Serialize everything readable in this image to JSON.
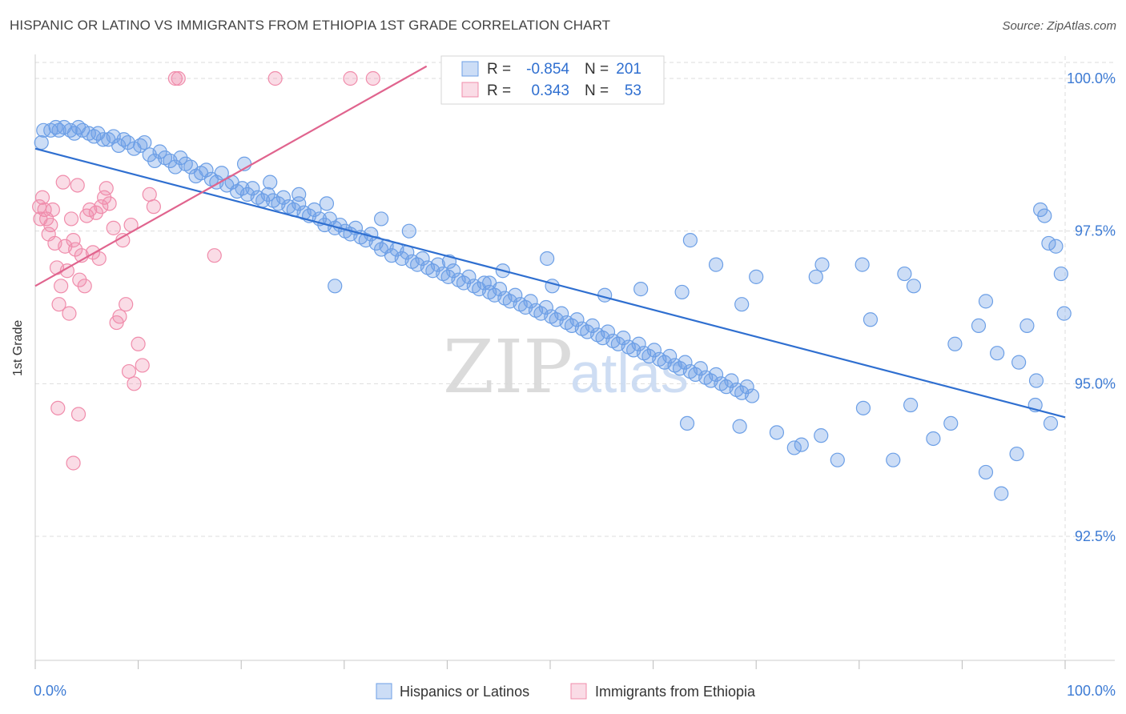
{
  "title": "HISPANIC OR LATINO VS IMMIGRANTS FROM ETHIOPIA 1ST GRADE CORRELATION CHART",
  "source": "Source: ZipAtlas.com",
  "watermark": {
    "zip": "ZIP",
    "atlas": "atlas"
  },
  "colors": {
    "blue": "#6c9fe6",
    "blue_fill": "rgba(108,159,230,0.35)",
    "blue_line": "#2f6fd0",
    "pink": "#f08cab",
    "pink_fill": "rgba(240,140,171,0.30)",
    "pink_line": "#e0648e",
    "axis_text": "#3d7bd4",
    "grid": "#dddddd"
  },
  "legend_top": {
    "rows": [
      {
        "r_label": "R =",
        "r_value": "-0.854",
        "n_label": "N =",
        "n_value": "201",
        "series": "blue"
      },
      {
        "r_label": "R =",
        "r_value": "0.343",
        "n_label": "N =",
        "n_value": "53",
        "series": "pink"
      }
    ]
  },
  "legend_bottom": [
    {
      "label": "Hispanics or Latinos",
      "series": "blue"
    },
    {
      "label": "Immigrants from Ethiopia",
      "series": "pink"
    }
  ],
  "chart_data": {
    "type": "scatter",
    "title": "HISPANIC OR LATINO VS IMMIGRANTS FROM ETHIOPIA 1ST GRADE CORRELATION CHART",
    "xlabel": "",
    "ylabel": "1st Grade",
    "xlim": [
      0,
      100
    ],
    "ylim": [
      90.2,
      100.4
    ],
    "x_tick_labels": [
      "0.0%",
      "100.0%"
    ],
    "y_ticks": [
      92.5,
      95.0,
      97.5,
      100.0
    ],
    "y_tick_labels": [
      "92.5%",
      "95.0%",
      "97.5%",
      "100.0%"
    ],
    "grid": true,
    "series": [
      {
        "name": "Hispanics or Latinos",
        "color": "blue",
        "R": -0.854,
        "N": 201,
        "trend": {
          "x": [
            0,
            100
          ],
          "y": [
            98.85,
            94.45
          ]
        },
        "points": [
          [
            0.6,
            98.95
          ],
          [
            0.8,
            99.15
          ],
          [
            1.5,
            99.15
          ],
          [
            2,
            99.2
          ],
          [
            2.3,
            99.15
          ],
          [
            2.8,
            99.2
          ],
          [
            3.4,
            99.15
          ],
          [
            3.8,
            99.1
          ],
          [
            4.2,
            99.2
          ],
          [
            4.6,
            99.15
          ],
          [
            5.2,
            99.1
          ],
          [
            5.7,
            99.05
          ],
          [
            6.1,
            99.1
          ],
          [
            6.6,
            99.0
          ],
          [
            7.1,
            99.0
          ],
          [
            7.6,
            99.05
          ],
          [
            8.1,
            98.9
          ],
          [
            8.6,
            99.0
          ],
          [
            9.0,
            98.95
          ],
          [
            9.6,
            98.85
          ],
          [
            10.2,
            98.9
          ],
          [
            10.6,
            98.95
          ],
          [
            11.1,
            98.75
          ],
          [
            11.6,
            98.65
          ],
          [
            12.1,
            98.8
          ],
          [
            12.6,
            98.7
          ],
          [
            13.1,
            98.65
          ],
          [
            13.6,
            98.55
          ],
          [
            14.1,
            98.7
          ],
          [
            14.6,
            98.6
          ],
          [
            15.1,
            98.55
          ],
          [
            15.6,
            98.4
          ],
          [
            16.1,
            98.45
          ],
          [
            16.6,
            98.5
          ],
          [
            17.1,
            98.35
          ],
          [
            17.6,
            98.3
          ],
          [
            18.1,
            98.45
          ],
          [
            18.6,
            98.25
          ],
          [
            19.1,
            98.3
          ],
          [
            19.6,
            98.15
          ],
          [
            20.1,
            98.2
          ],
          [
            20.6,
            98.1
          ],
          [
            21.1,
            98.2
          ],
          [
            21.6,
            98.05
          ],
          [
            22.1,
            98.0
          ],
          [
            22.6,
            98.1
          ],
          [
            23.1,
            98.0
          ],
          [
            23.6,
            97.95
          ],
          [
            24.1,
            98.05
          ],
          [
            24.6,
            97.9
          ],
          [
            25.1,
            97.85
          ],
          [
            25.6,
            97.95
          ],
          [
            26.1,
            97.8
          ],
          [
            26.6,
            97.75
          ],
          [
            27.1,
            97.85
          ],
          [
            27.6,
            97.7
          ],
          [
            28.1,
            97.6
          ],
          [
            28.6,
            97.7
          ],
          [
            29.1,
            97.55
          ],
          [
            29.6,
            97.6
          ],
          [
            30.1,
            97.5
          ],
          [
            30.6,
            97.45
          ],
          [
            31.1,
            97.55
          ],
          [
            31.6,
            97.4
          ],
          [
            32.1,
            97.35
          ],
          [
            32.6,
            97.45
          ],
          [
            33.1,
            97.3
          ],
          [
            33.6,
            97.2
          ],
          [
            34.1,
            97.25
          ],
          [
            34.6,
            97.1
          ],
          [
            35.1,
            97.2
          ],
          [
            35.6,
            97.05
          ],
          [
            36.1,
            97.15
          ],
          [
            36.6,
            97.0
          ],
          [
            37.1,
            96.95
          ],
          [
            37.6,
            97.05
          ],
          [
            38.1,
            96.9
          ],
          [
            38.6,
            96.85
          ],
          [
            39.1,
            96.95
          ],
          [
            39.6,
            96.8
          ],
          [
            40.1,
            96.75
          ],
          [
            40.6,
            96.85
          ],
          [
            41.1,
            96.7
          ],
          [
            41.6,
            96.65
          ],
          [
            42.1,
            96.75
          ],
          [
            42.6,
            96.6
          ],
          [
            43.1,
            96.55
          ],
          [
            43.6,
            96.65
          ],
          [
            44.1,
            96.5
          ],
          [
            44.6,
            96.45
          ],
          [
            45.1,
            96.55
          ],
          [
            45.6,
            96.4
          ],
          [
            46.1,
            96.35
          ],
          [
            46.6,
            96.45
          ],
          [
            47.1,
            96.3
          ],
          [
            47.6,
            96.25
          ],
          [
            48.1,
            96.35
          ],
          [
            48.6,
            96.2
          ],
          [
            49.1,
            96.15
          ],
          [
            49.6,
            96.25
          ],
          [
            50.1,
            96.1
          ],
          [
            50.6,
            96.05
          ],
          [
            51.1,
            96.15
          ],
          [
            51.6,
            96.0
          ],
          [
            52.1,
            95.95
          ],
          [
            52.6,
            96.05
          ],
          [
            53.1,
            95.9
          ],
          [
            53.6,
            95.85
          ],
          [
            54.1,
            95.95
          ],
          [
            54.6,
            95.8
          ],
          [
            55.1,
            95.75
          ],
          [
            55.6,
            95.85
          ],
          [
            56.1,
            95.7
          ],
          [
            56.6,
            95.65
          ],
          [
            57.1,
            95.75
          ],
          [
            57.6,
            95.6
          ],
          [
            58.1,
            95.55
          ],
          [
            58.6,
            95.65
          ],
          [
            59.1,
            95.5
          ],
          [
            59.6,
            95.45
          ],
          [
            60.1,
            95.55
          ],
          [
            60.6,
            95.4
          ],
          [
            61.1,
            95.35
          ],
          [
            61.6,
            95.45
          ],
          [
            62.1,
            95.3
          ],
          [
            62.6,
            95.25
          ],
          [
            63.1,
            95.35
          ],
          [
            63.6,
            95.2
          ],
          [
            64.1,
            95.15
          ],
          [
            64.6,
            95.25
          ],
          [
            65.1,
            95.1
          ],
          [
            65.6,
            95.05
          ],
          [
            66.1,
            95.15
          ],
          [
            66.6,
            95.0
          ],
          [
            67.1,
            94.95
          ],
          [
            67.6,
            95.05
          ],
          [
            68.1,
            94.9
          ],
          [
            68.6,
            94.85
          ],
          [
            69.1,
            94.95
          ],
          [
            69.6,
            94.8
          ],
          [
            20.3,
            98.6
          ],
          [
            22.8,
            98.3
          ],
          [
            25.6,
            98.1
          ],
          [
            28.3,
            97.95
          ],
          [
            33.6,
            97.7
          ],
          [
            36.3,
            97.5
          ],
          [
            40.2,
            97.0
          ],
          [
            45.4,
            96.85
          ],
          [
            50.2,
            96.6
          ],
          [
            55.3,
            96.45
          ],
          [
            58.8,
            96.55
          ],
          [
            62.8,
            96.5
          ],
          [
            68.6,
            96.3
          ],
          [
            75.8,
            96.75
          ],
          [
            80.3,
            96.95
          ],
          [
            84.4,
            96.8
          ],
          [
            85.3,
            96.6
          ],
          [
            92.3,
            96.35
          ],
          [
            96.3,
            95.95
          ],
          [
            97.6,
            97.85
          ],
          [
            98.0,
            97.75
          ],
          [
            98.4,
            97.3
          ],
          [
            99.1,
            97.25
          ],
          [
            99.6,
            96.8
          ],
          [
            99.9,
            96.15
          ],
          [
            89.3,
            95.65
          ],
          [
            91.6,
            95.95
          ],
          [
            93.4,
            95.5
          ],
          [
            95.5,
            95.35
          ],
          [
            97.2,
            95.05
          ],
          [
            63.3,
            94.35
          ],
          [
            68.4,
            94.3
          ],
          [
            72.0,
            94.2
          ],
          [
            74.4,
            94.0
          ],
          [
            76.3,
            94.15
          ],
          [
            80.4,
            94.6
          ],
          [
            85.0,
            94.65
          ],
          [
            88.9,
            94.35
          ],
          [
            92.3,
            93.55
          ],
          [
            93.8,
            93.2
          ],
          [
            73.7,
            93.95
          ],
          [
            77.9,
            93.75
          ],
          [
            83.3,
            93.75
          ],
          [
            87.2,
            94.1
          ],
          [
            95.3,
            93.85
          ],
          [
            97.1,
            94.65
          ],
          [
            98.6,
            94.35
          ],
          [
            29.1,
            96.6
          ],
          [
            44.1,
            96.65
          ],
          [
            49.7,
            97.05
          ],
          [
            63.6,
            97.35
          ],
          [
            66.1,
            96.95
          ],
          [
            70.0,
            96.75
          ],
          [
            76.4,
            96.95
          ],
          [
            81.1,
            96.05
          ]
        ]
      },
      {
        "name": "Immigrants from Ethiopia",
        "color": "pink",
        "R": 0.343,
        "N": 53,
        "trend": {
          "x": [
            0,
            38
          ],
          "y": [
            96.6,
            100.2
          ]
        },
        "points": [
          [
            0.4,
            97.9
          ],
          [
            0.5,
            97.7
          ],
          [
            0.7,
            98.05
          ],
          [
            0.9,
            97.85
          ],
          [
            1.1,
            97.7
          ],
          [
            1.3,
            97.45
          ],
          [
            1.5,
            97.6
          ],
          [
            1.7,
            97.85
          ],
          [
            1.9,
            97.3
          ],
          [
            2.1,
            96.9
          ],
          [
            2.3,
            96.3
          ],
          [
            2.5,
            96.6
          ],
          [
            2.7,
            98.3
          ],
          [
            2.9,
            97.25
          ],
          [
            3.1,
            96.85
          ],
          [
            3.3,
            96.15
          ],
          [
            3.5,
            97.7
          ],
          [
            3.7,
            97.35
          ],
          [
            3.9,
            97.2
          ],
          [
            4.1,
            98.25
          ],
          [
            4.3,
            96.7
          ],
          [
            4.5,
            97.1
          ],
          [
            4.8,
            96.6
          ],
          [
            5.0,
            97.75
          ],
          [
            5.3,
            97.85
          ],
          [
            5.6,
            97.15
          ],
          [
            5.9,
            97.8
          ],
          [
            6.2,
            97.05
          ],
          [
            6.4,
            97.9
          ],
          [
            6.7,
            98.05
          ],
          [
            6.9,
            98.2
          ],
          [
            7.2,
            97.95
          ],
          [
            7.6,
            97.55
          ],
          [
            7.9,
            96.0
          ],
          [
            8.2,
            96.1
          ],
          [
            8.5,
            97.35
          ],
          [
            8.8,
            96.3
          ],
          [
            9.1,
            95.2
          ],
          [
            9.3,
            97.6
          ],
          [
            9.6,
            95.0
          ],
          [
            10.0,
            95.65
          ],
          [
            10.4,
            95.3
          ],
          [
            11.1,
            98.1
          ],
          [
            11.5,
            97.9
          ],
          [
            13.6,
            100.0
          ],
          [
            13.9,
            100.0
          ],
          [
            17.4,
            97.1
          ],
          [
            23.3,
            100.0
          ],
          [
            30.6,
            100.0
          ],
          [
            32.8,
            100.0
          ],
          [
            2.2,
            94.6
          ],
          [
            4.2,
            94.5
          ],
          [
            3.7,
            93.7
          ]
        ]
      }
    ]
  }
}
